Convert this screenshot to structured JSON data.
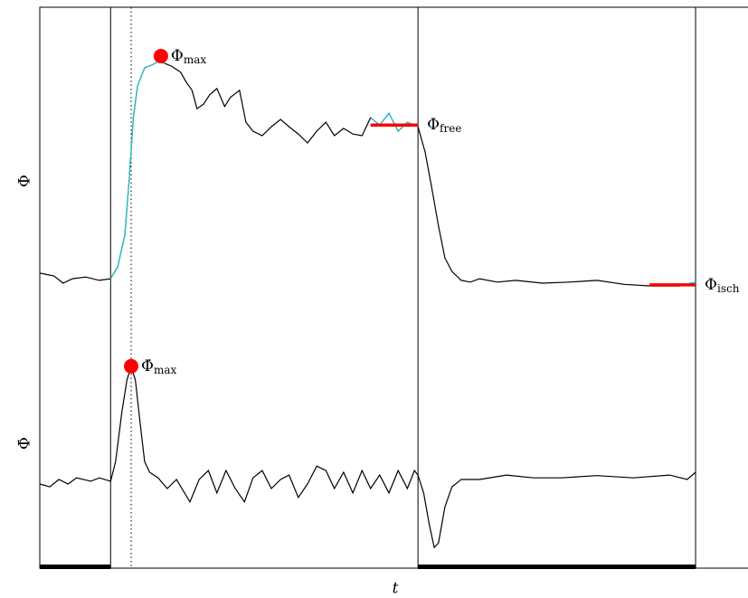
{
  "chart_data": {
    "type": "line",
    "x_label": "t",
    "y_labels": [
      "Φ",
      "Φ̇"
    ],
    "xlim": [
      0,
      100
    ],
    "ylim": [
      0,
      100
    ],
    "events": [
      10.0,
      53.4,
      92.6
    ],
    "marker_time": 12.9,
    "bars": [
      [
        0,
        10.0
      ],
      [
        53.4,
        92.6
      ]
    ],
    "series": [
      {
        "color": "#000000",
        "x": [
          0,
          2.0,
          3.3,
          4.6,
          6.5,
          8.4,
          10.0,
          11.0,
          12.0,
          12.6,
          13.2,
          13.8,
          14.8,
          15.8,
          16.7,
          17.6,
          18.6,
          19.9,
          20.6,
          21.5,
          22.2,
          23.1,
          24.0,
          25.0,
          26.1,
          26.9,
          28.2,
          29.1,
          30.1,
          31.4,
          32.7,
          34.0,
          35.2,
          36.5,
          37.8,
          39.1,
          40.4,
          41.6,
          42.9,
          44.2,
          45.5,
          46.7,
          48.0,
          49.3,
          50.6,
          51.9,
          53.4,
          54.4,
          55.4,
          56.3,
          57.2,
          58.2,
          59.5,
          60.8,
          62.1,
          64.6,
          67.2,
          71.0,
          74.8,
          78.7,
          82.5,
          86.3,
          90.2,
          92.6
        ],
        "values": [
          52.6,
          52.1,
          50.8,
          51.6,
          51.9,
          51.3,
          51.6,
          53.7,
          59.4,
          69.0,
          80.3,
          86.0,
          89.2,
          89.7,
          90.3,
          90.0,
          89.5,
          88.4,
          86.8,
          85.2,
          81.9,
          82.7,
          84.4,
          85.5,
          82.3,
          83.9,
          85.2,
          79.5,
          77.9,
          77.1,
          78.7,
          80.0,
          78.7,
          77.4,
          75.8,
          77.9,
          79.5,
          77.1,
          78.4,
          77.4,
          77.1,
          80.3,
          79.0,
          81.1,
          77.9,
          79.5,
          78.7,
          74.2,
          67.4,
          61.0,
          55.3,
          52.9,
          51.3,
          51.0,
          51.6,
          51.0,
          51.3,
          50.8,
          51.0,
          51.3,
          50.6,
          50.3,
          50.3,
          51.0
        ]
      },
      {
        "color": "#22c5cf",
        "x": [
          0,
          2.0,
          3.3,
          4.6,
          6.5,
          8.4,
          10.0,
          11.0,
          12.0,
          12.6,
          13.2,
          13.8,
          14.8,
          15.8,
          16.7,
          17.6,
          18.6,
          19.9,
          20.6,
          21.5,
          22.2,
          23.1,
          24.0,
          25.0,
          26.1,
          26.9,
          28.2,
          29.1,
          30.1,
          31.4,
          32.7,
          34.0,
          35.2,
          36.5,
          37.8,
          39.1,
          40.4,
          41.6,
          42.9,
          44.2,
          45.5,
          46.7,
          48.0,
          49.3,
          50.6,
          51.9,
          53.4,
          54.4,
          55.4,
          56.3,
          57.2,
          58.2,
          59.5,
          60.8,
          62.1,
          64.6,
          67.2,
          71.0,
          74.8,
          78.7,
          82.5,
          86.3,
          90.2,
          92.6
        ],
        "values": [
          null,
          null,
          null,
          null,
          null,
          null,
          51.6,
          53.7,
          59.4,
          69.0,
          80.3,
          86.0,
          89.2,
          89.7,
          90.3,
          90.0,
          null,
          null,
          null,
          null,
          null,
          null,
          null,
          null,
          null,
          null,
          null,
          null,
          null,
          null,
          null,
          null,
          null,
          null,
          null,
          null,
          null,
          null,
          null,
          null,
          null,
          80.3,
          79.0,
          81.1,
          77.9,
          79.5,
          78.7,
          null,
          null,
          null,
          null,
          null,
          null,
          null,
          null,
          null,
          null,
          null,
          null,
          null,
          null,
          50.3,
          50.3,
          51.0
        ]
      },
      {
        "color": "#000000",
        "x": [
          0,
          1.4,
          2.7,
          4.0,
          5.2,
          7.2,
          8.4,
          10.0,
          10.7,
          11.6,
          12.3,
          12.9,
          13.5,
          14.2,
          14.8,
          15.5,
          16.7,
          18.0,
          19.3,
          21.2,
          22.5,
          23.8,
          25.0,
          26.3,
          27.6,
          28.9,
          30.1,
          31.4,
          32.7,
          34.0,
          35.2,
          36.5,
          37.8,
          39.1,
          40.4,
          41.6,
          42.9,
          44.2,
          45.5,
          46.7,
          48.0,
          49.3,
          50.6,
          51.9,
          52.9,
          53.4,
          54.2,
          55.0,
          55.7,
          56.3,
          57.2,
          58.2,
          59.5,
          62.1,
          65.9,
          69.7,
          73.6,
          78.7,
          83.8,
          88.9,
          91.4,
          92.6
        ],
        "values": [
          15.0,
          14.5,
          15.8,
          15.0,
          16.1,
          15.5,
          16.1,
          15.5,
          19.0,
          27.9,
          33.5,
          36.0,
          33.5,
          25.5,
          19.0,
          17.1,
          16.1,
          14.2,
          15.8,
          11.8,
          15.8,
          17.4,
          13.4,
          17.4,
          14.2,
          11.8,
          16.1,
          17.4,
          14.2,
          15.8,
          16.6,
          12.6,
          15.0,
          18.2,
          17.4,
          14.2,
          17.1,
          13.4,
          17.4,
          14.2,
          16.6,
          13.4,
          17.4,
          14.2,
          17.4,
          16.6,
          13.4,
          7.7,
          3.7,
          4.5,
          10.9,
          14.5,
          15.8,
          15.8,
          16.6,
          16.1,
          16.1,
          16.5,
          16.1,
          16.6,
          15.8,
          17.1
        ]
      }
    ],
    "markers": [
      {
        "x": 17.1,
        "y": 91.3,
        "label": "Φ",
        "sub": "max",
        "color": "#ff0000"
      },
      {
        "x": 12.9,
        "y": 36.0,
        "label": "Φ̇",
        "sub": "max",
        "color": "#ff0000"
      }
    ],
    "levels": [
      {
        "x": [
          46.7,
          53.4
        ],
        "y": 79.0,
        "label": "Φ",
        "sub": "free",
        "color": "#ff0000"
      },
      {
        "x": [
          86.1,
          92.6
        ],
        "y": 50.5,
        "label": "Φ",
        "sub": "isch",
        "color": "#ff0000"
      }
    ]
  }
}
